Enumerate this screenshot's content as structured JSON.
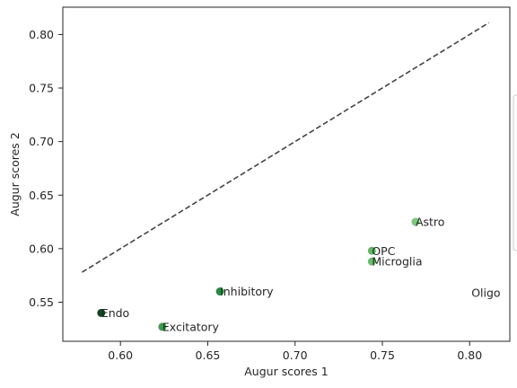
{
  "chart_data": {
    "type": "scatter",
    "title": "",
    "xlabel": "Augur scores 1",
    "ylabel": "Augur scores 2",
    "xlim": [
      0.567,
      0.823
    ],
    "ylim": [
      0.5135,
      0.8255
    ],
    "xticks": [
      0.6,
      0.65,
      0.7,
      0.75,
      0.8
    ],
    "xtick_labels": [
      "0.60",
      "0.65",
      "0.70",
      "0.75",
      "0.80"
    ],
    "yticks": [
      0.55,
      0.6,
      0.65,
      0.7,
      0.75,
      0.8
    ],
    "ytick_labels": [
      "0.55",
      "0.60",
      "0.65",
      "0.70",
      "0.75",
      "0.80"
    ],
    "grid": false,
    "reference_line": {
      "x": [
        0.578,
        0.811
      ],
      "y": [
        0.578,
        0.811
      ],
      "style": "dashed",
      "color": "#444444"
    },
    "points": [
      {
        "label": "Astro",
        "x": 0.769,
        "y": 0.625,
        "color": "#7bc87c"
      },
      {
        "label": "OPC",
        "x": 0.744,
        "y": 0.598,
        "color": "#60b766"
      },
      {
        "label": "Microglia",
        "x": 0.744,
        "y": 0.588,
        "color": "#68bd6c"
      },
      {
        "label": "Oligo",
        "x": 0.801,
        "y": 0.559,
        "color": "#ffffff"
      },
      {
        "label": "Inhibitory",
        "x": 0.657,
        "y": 0.56,
        "color": "#2a8a44"
      },
      {
        "label": "Endo",
        "x": 0.589,
        "y": 0.54,
        "color": "#0d4a1f"
      },
      {
        "label": "Excitatory",
        "x": 0.624,
        "y": 0.527,
        "color": "#3a9a50"
      }
    ]
  }
}
